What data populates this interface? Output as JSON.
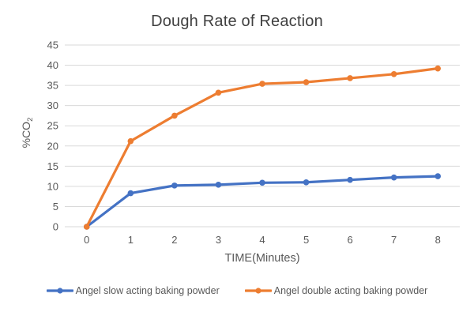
{
  "chart_data": {
    "type": "line",
    "title": "Dough Rate of Reaction",
    "xlabel": "TIME(Minutes)",
    "ylabel": "%CO2",
    "ylabel_rich": {
      "base": "%CO",
      "sub": "2"
    },
    "categories": [
      "0",
      "1",
      "2",
      "3",
      "4",
      "5",
      "6",
      "7",
      "8"
    ],
    "series": [
      {
        "name": "Angel slow acting baking powder",
        "color": "#4472C4",
        "values": [
          0,
          8.3,
          10.2,
          10.4,
          10.9,
          11,
          11.6,
          12.2,
          12.5
        ]
      },
      {
        "name": "Angel double acting baking powder",
        "color": "#ED7D31",
        "values": [
          0,
          21.2,
          27.5,
          33.2,
          35.4,
          35.8,
          36.8,
          37.8,
          39.2
        ]
      }
    ],
    "ylim": [
      0,
      45
    ],
    "ytick_step": 5,
    "grid": true,
    "gridline_color": "#D9D9D9",
    "tick_color": "#595959",
    "title_color": "#404040",
    "legend_position": "bottom"
  }
}
